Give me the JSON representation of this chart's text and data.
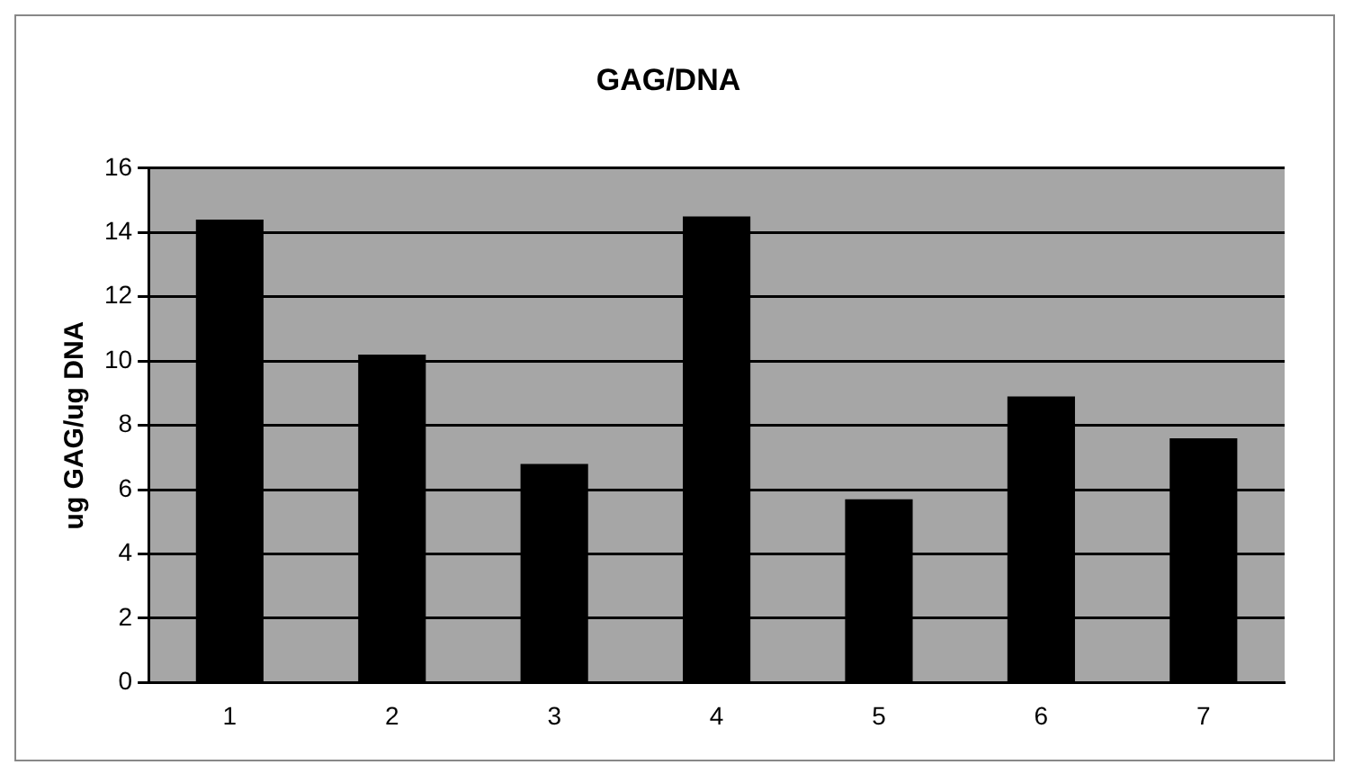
{
  "chart_data": {
    "type": "bar",
    "title": "GAG/DNA",
    "ylabel": "ug GAG/ug DNA",
    "categories": [
      "1",
      "2",
      "3",
      "4",
      "5",
      "6",
      "7"
    ],
    "values": [
      14.4,
      10.2,
      6.8,
      14.5,
      5.7,
      8.9,
      7.6
    ],
    "color": "#000000",
    "ylim": [
      0,
      16
    ],
    "yticks": [
      0,
      2,
      4,
      6,
      8,
      10,
      12,
      14,
      16
    ],
    "grid": "y",
    "legend": false
  }
}
